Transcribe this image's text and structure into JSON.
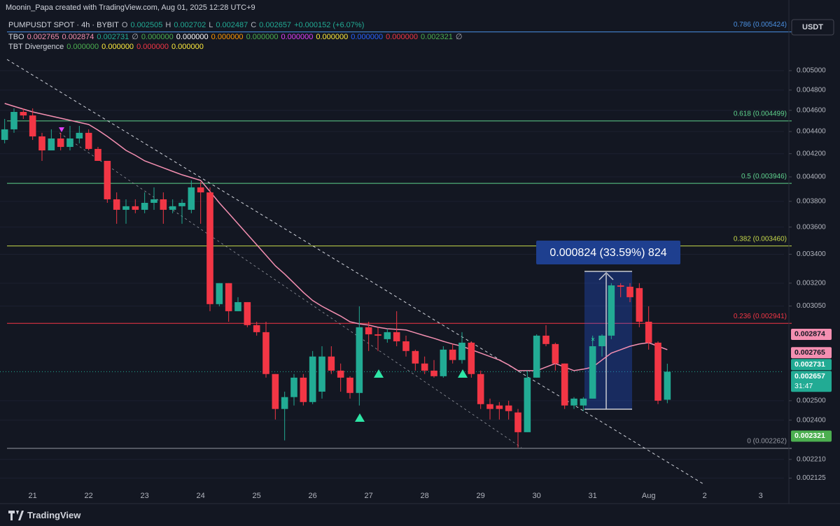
{
  "header": {
    "credit": "Moonin_Papa created with TradingView.com, Aug 01, 2025 12:28 UTC+9",
    "brand": "TradingView"
  },
  "chart_data": {
    "type": "candlestick",
    "symbol": "PUMPUSDT SPOT · 4h · BYBIT",
    "ohlc_labels": [
      "O",
      "H",
      "L",
      "C"
    ],
    "change": "+0.000152 (+6.07%)",
    "currency": "USDT",
    "countdown": "31:47",
    "measure": "0.000824 (33.59%) 824",
    "up_color": "#22ab94",
    "down_color": "#f23645",
    "log_scale": true,
    "grid": true,
    "ylim": [
      0.00202,
      0.005566
    ],
    "yticks": [
      {
        "value": 0.005,
        "label": "0.005000"
      },
      {
        "value": 0.0048,
        "label": "0.004800"
      },
      {
        "value": 0.0046,
        "label": "0.004600"
      },
      {
        "value": 0.0044,
        "label": "0.004400"
      },
      {
        "value": 0.0042,
        "label": "0.004200"
      },
      {
        "value": 0.004,
        "label": "0.004000"
      },
      {
        "value": 0.0038,
        "label": "0.003800"
      },
      {
        "value": 0.0036,
        "label": "0.003600"
      },
      {
        "value": 0.0034,
        "label": "0.003400"
      },
      {
        "value": 0.0032,
        "label": "0.003200"
      },
      {
        "value": 0.00305,
        "label": "0.003050"
      },
      {
        "value": 0.0025,
        "label": "0.002500"
      },
      {
        "value": 0.0024,
        "label": "0.002400"
      },
      {
        "value": 0.00221,
        "label": "0.002210"
      },
      {
        "value": 0.002125,
        "label": "0.002125"
      }
    ],
    "categories": [
      null,
      null,
      null,
      "21",
      null,
      null,
      null,
      null,
      null,
      "22",
      null,
      null,
      null,
      null,
      null,
      "23",
      null,
      null,
      null,
      null,
      null,
      "24",
      null,
      null,
      null,
      null,
      null,
      "25",
      null,
      null,
      null,
      null,
      null,
      "26",
      null,
      null,
      null,
      null,
      null,
      "27",
      null,
      null,
      null,
      null,
      null,
      "28",
      null,
      null,
      null,
      null,
      null,
      "29",
      null,
      null,
      null,
      null,
      null,
      "30",
      null,
      null,
      null,
      null,
      null,
      "31",
      null,
      null,
      null,
      null,
      null,
      "Aug",
      null,
      null,
      null,
      null,
      null,
      "2",
      null,
      null,
      null,
      null,
      null,
      "3",
      null,
      null
    ],
    "open": [
      0.004323,
      0.00442,
      0.004585,
      0.004551,
      0.004355,
      0.004229,
      0.004336,
      0.00426,
      0.004336,
      0.004388,
      0.004242,
      0.004137,
      0.003816,
      0.003733,
      0.003761,
      0.003733,
      0.003788,
      0.003816,
      0.003733,
      0.003761,
      0.003733,
      0.003913,
      0.003872,
      0.003062,
      0.0032,
      0.003017,
      0.003075,
      0.00293,
      0.002887,
      0.002644,
      0.002457,
      0.002519,
      0.002624,
      0.002493,
      0.002548,
      0.002743,
      0.002663,
      0.002624,
      0.002541,
      0.002917,
      0.002874,
      0.002845,
      0.002887,
      0.002832,
      0.002775,
      0.002703,
      0.002663,
      0.002632,
      0.002783,
      0.002723,
      0.002824,
      0.002644,
      0.002482,
      0.002475,
      0.002475,
      0.002439,
      0.00234,
      0.002624,
      0.002866,
      0.002816,
      0.002703,
      0.002475,
      0.002475,
      0.002511,
      0.002803,
      0.002866,
      0.003185,
      0.003176,
      0.003167,
      0.002951,
      0.002824,
      0.002505,
      null,
      null,
      null,
      null,
      null,
      null,
      null,
      null,
      null,
      null,
      null,
      null
    ],
    "high": [
      0.004518,
      0.004619,
      0.004619,
      0.004619,
      0.004388,
      0.00442,
      0.004388,
      0.004452,
      0.004452,
      0.00442,
      0.00426,
      0.004137,
      0.003872,
      0.003816,
      0.003816,
      0.003872,
      0.003913,
      0.003872,
      0.003816,
      0.003816,
      0.003971,
      0.003959,
      0.003913,
      0.0032,
      0.0032,
      0.003107,
      0.003075,
      0.002951,
      0.002951,
      0.002644,
      0.002548,
      0.002644,
      0.002644,
      0.002775,
      0.002803,
      0.002803,
      0.002703,
      0.002632,
      0.003048,
      0.002951,
      0.002917,
      0.002908,
      0.003017,
      0.002866,
      0.002783,
      0.002743,
      0.002723,
      0.002803,
      0.002816,
      0.002887,
      0.002832,
      0.002663,
      0.002511,
      0.002493,
      0.0025,
      0.002457,
      0.002663,
      0.002874,
      0.00293,
      0.002824,
      0.002703,
      0.002519,
      0.002519,
      0.002866,
      0.002874,
      0.0032,
      0.0032,
      0.0032,
      0.0032,
      0.003048,
      0.002832,
      0.002702,
      null,
      null,
      null,
      null,
      null,
      null,
      null,
      null,
      null,
      null,
      null,
      null
    ],
    "low": [
      0.004292,
      0.004388,
      0.004518,
      0.004323,
      0.004137,
      0.004229,
      0.004229,
      0.004229,
      0.004292,
      0.004229,
      0.004137,
      0.003788,
      0.003625,
      0.003625,
      0.003706,
      0.003706,
      0.003733,
      0.003625,
      0.003706,
      0.003625,
      0.003706,
      0.003625,
      0.003017,
      0.003048,
      0.002951,
      0.003017,
      0.002917,
      0.002866,
      0.002624,
      0.002403,
      0.0023,
      0.002475,
      0.002475,
      0.002482,
      0.002511,
      0.002644,
      0.002548,
      0.002511,
      0.002475,
      0.002775,
      0.002775,
      0.002824,
      0.002803,
      0.002743,
      0.002663,
      0.002644,
      0.002624,
      0.002624,
      0.002703,
      0.002703,
      0.002624,
      0.002457,
      0.002403,
      0.002403,
      0.002403,
      0.002266,
      0.00234,
      0.002624,
      0.002803,
      0.002663,
      0.002457,
      0.002457,
      0.002446,
      0.002511,
      0.002743,
      0.002845,
      0.003107,
      0.003075,
      0.002917,
      0.002783,
      0.002482,
      0.002487,
      null,
      null,
      null,
      null,
      null,
      null,
      null,
      null,
      null,
      null,
      null,
      null
    ],
    "close": [
      0.00442,
      0.004585,
      0.004551,
      0.004355,
      0.004229,
      0.004336,
      0.00426,
      0.004336,
      0.004388,
      0.004242,
      0.004137,
      0.003816,
      0.003733,
      0.003761,
      0.003733,
      0.003788,
      0.003816,
      0.003733,
      0.003761,
      0.003788,
      0.003913,
      0.003872,
      0.003062,
      0.0032,
      0.003017,
      0.003075,
      0.00293,
      0.002887,
      0.002644,
      0.002457,
      0.002519,
      0.002624,
      0.002493,
      0.002743,
      0.002743,
      0.002663,
      0.002624,
      0.002541,
      0.002917,
      0.002874,
      0.002866,
      0.002887,
      0.002832,
      0.002775,
      0.002703,
      0.002663,
      0.002632,
      0.002783,
      0.002723,
      0.002824,
      0.002644,
      0.002482,
      0.002457,
      0.002457,
      0.002446,
      0.00234,
      0.002624,
      0.002866,
      0.002816,
      0.002703,
      0.002475,
      0.002511,
      0.002511,
      0.002803,
      0.002866,
      0.003185,
      0.003176,
      0.003107,
      0.002951,
      0.002824,
      0.0025,
      0.002657,
      null,
      null,
      null,
      null,
      null,
      null,
      null,
      null,
      null,
      null,
      null,
      null
    ],
    "ma": {
      "color": "#f48fb1",
      "values": [
        0.004667,
        0.004639,
        0.004612,
        0.004585,
        0.004565,
        0.004545,
        0.004525,
        0.004505,
        0.004485,
        0.004465,
        0.004413,
        0.004355,
        0.004292,
        0.004229,
        0.004186,
        0.004137,
        0.004107,
        0.004077,
        0.004047,
        0.004018,
        0.003994,
        0.003971,
        0.003879,
        0.003788,
        0.003706,
        0.003625,
        0.003546,
        0.003469,
        0.003393,
        0.003319,
        0.003262,
        0.0032,
        0.003139,
        0.003085,
        0.003048,
        0.003017,
        0.002986,
        0.002951,
        0.002938,
        0.00293,
        0.002917,
        0.002908,
        0.002904,
        0.0029,
        0.002883,
        0.002866,
        0.00285,
        0.002832,
        0.002816,
        0.002803,
        0.002783,
        0.002763,
        0.002743,
        0.002723,
        0.002695,
        0.002663,
        0.002663,
        0.002663,
        0.002683,
        0.002703,
        0.002683,
        0.002663,
        0.002671,
        0.002683,
        0.002723,
        0.002763,
        0.002783,
        0.002803,
        0.002816,
        0.002824,
        0.002803,
        0.002783,
        null,
        null,
        null,
        null,
        null,
        null,
        null,
        null,
        null,
        null,
        null,
        null
      ]
    },
    "indicators": [
      {
        "name": "TBO",
        "values": [
          "0.002765",
          "0.002874",
          "0.002731",
          "∅",
          "0.000000",
          "0.000000",
          "0.000000",
          "0.000000",
          "0.000000",
          "0.000000",
          "0.000000",
          "0.000000",
          "0.002321",
          "∅"
        ],
        "colors": [
          "#f48fb1",
          "#f48fb1",
          "#22ab94",
          "#b2b5be",
          "#4caf50",
          "#ffffff",
          "#ff9800",
          "#4caf50",
          "#e040fb",
          "#ffeb3b",
          "#2962ff",
          "#f23645",
          "#4caf50",
          "#b2b5be"
        ]
      },
      {
        "name": "TBT Divergence",
        "values": [
          "0.000000",
          "0.000000",
          "0.000000",
          "0.000000"
        ],
        "colors": [
          "#4caf50",
          "#ffeb3b",
          "#f23645",
          "#ffeb3b"
        ]
      }
    ],
    "fib_levels": [
      {
        "value": 0.005424,
        "label": "0.786 (0.005424)",
        "color": "#4a90e2"
      },
      {
        "value": 0.004499,
        "label": "0.618 (0.004499)",
        "color": "#5fd38d"
      },
      {
        "value": 0.003946,
        "label": "0.5 (0.003946)",
        "color": "#5fd38d"
      },
      {
        "value": 0.00346,
        "label": "0.382 (0.003460)",
        "color": "#c6d84a"
      },
      {
        "value": 0.002941,
        "label": "0.236 (0.002941)",
        "color": "#f23645"
      },
      {
        "value": 0.002262,
        "label": "0 (0.002262)",
        "color": "#9598a1"
      }
    ],
    "price_tags": [
      {
        "value": 0.002874,
        "color": "#f48fb1"
      },
      {
        "value": 0.002765,
        "color": "#f48fb1"
      },
      {
        "value": 0.002731,
        "color": "#22ab94"
      },
      {
        "value": 0.002321,
        "color": "#4caf50"
      }
    ]
  }
}
